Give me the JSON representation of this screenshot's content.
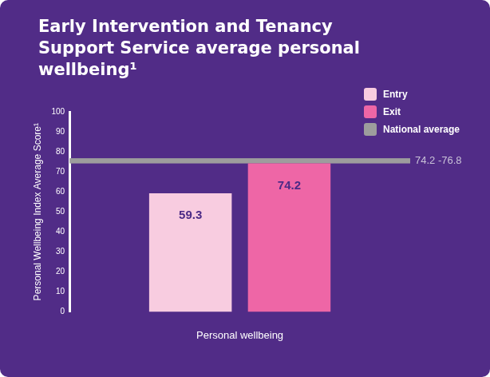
{
  "chart_data": {
    "type": "bar",
    "title": "Early Intervention and Tenancy Support Service average personal wellbeing¹",
    "y_label": "Personal Wellbeing Index Average Score¹",
    "categories": [
      "Personal wellbeing"
    ],
    "series": [
      {
        "name": "Entry",
        "color": "#f8cce0",
        "values": [
          59.3
        ]
      },
      {
        "name": "Exit",
        "color": "#ee66a6",
        "values": [
          74.2
        ]
      }
    ],
    "reference_band": {
      "name": "National average",
      "color": "#9d9d9d",
      "range": [
        74.2,
        76.8
      ],
      "label": "74.2 -76.8"
    },
    "ylim": [
      0,
      100
    ],
    "yticks": [
      0,
      10,
      20,
      30,
      40,
      50,
      60,
      70,
      80,
      90,
      100
    ],
    "grid": false,
    "legend": "top-right",
    "data_labels": true
  }
}
